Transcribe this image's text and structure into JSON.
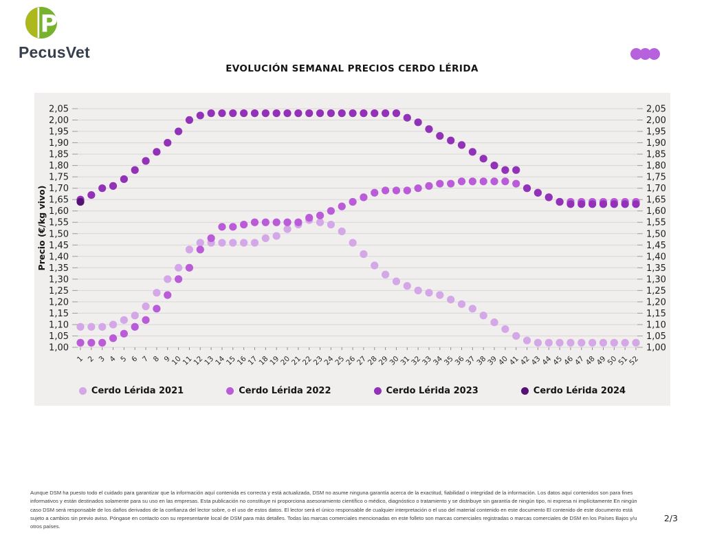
{
  "header": {
    "logo": {
      "monogram": "P",
      "wordmark": "PecusVet",
      "colors": {
        "left_half": "#adb81c",
        "right_half": "#77b22c",
        "text": "#36404d"
      }
    },
    "menu_dots_icon": "three-dots",
    "menu_dots_color": "#b761dc"
  },
  "title": "EVOLUCIÓN SEMANAL PRECIOS CERDO LÉRIDA",
  "chart_data": {
    "type": "scatter",
    "title": "EVOLUCIÓN SEMANAL PRECIOS CERDO LÉRIDA",
    "xlabel": "",
    "ylabel": "Precio (€/kg vivo)",
    "x": [
      1,
      2,
      3,
      4,
      5,
      6,
      7,
      8,
      9,
      10,
      11,
      12,
      13,
      14,
      15,
      16,
      17,
      18,
      19,
      20,
      21,
      22,
      23,
      24,
      25,
      26,
      27,
      28,
      29,
      30,
      31,
      32,
      33,
      34,
      35,
      36,
      37,
      38,
      39,
      40,
      41,
      42,
      43,
      44,
      45,
      46,
      47,
      48,
      49,
      50,
      51,
      52
    ],
    "ylim": [
      1.0,
      2.05
    ],
    "ytick_step": 0.05,
    "y_tick_labels": [
      "2,05",
      "2,00",
      "1,95",
      "1,90",
      "1,85",
      "1,80",
      "1,75",
      "1,70",
      "1,65",
      "1,60",
      "1,55",
      "1,50",
      "1,45",
      "1,40",
      "1,35",
      "1,30",
      "1,25",
      "1,20",
      "1,15",
      "1,10",
      "1,05",
      "1,00"
    ],
    "grid": true,
    "legend_position": "bottom",
    "background": "#f0efee",
    "series": [
      {
        "name": "Cerdo Lérida 2021",
        "color": "#d4a7e6",
        "values": [
          1.09,
          1.09,
          1.09,
          1.1,
          1.12,
          1.14,
          1.18,
          1.24,
          1.3,
          1.35,
          1.43,
          1.46,
          1.46,
          1.46,
          1.46,
          1.46,
          1.46,
          1.48,
          1.49,
          1.52,
          1.54,
          1.56,
          1.55,
          1.54,
          1.51,
          1.46,
          1.41,
          1.36,
          1.32,
          1.29,
          1.27,
          1.25,
          1.24,
          1.23,
          1.21,
          1.19,
          1.17,
          1.14,
          1.11,
          1.08,
          1.05,
          1.03,
          1.02,
          1.02,
          1.02,
          1.02,
          1.02,
          1.02,
          1.02,
          1.02,
          1.02,
          1.02
        ]
      },
      {
        "name": "Cerdo Lérida 2022",
        "color": "#ba5cd7",
        "values": [
          1.02,
          1.02,
          1.02,
          1.04,
          1.06,
          1.09,
          1.12,
          1.17,
          1.23,
          1.3,
          1.35,
          1.43,
          1.48,
          1.53,
          1.53,
          1.54,
          1.55,
          1.55,
          1.55,
          1.55,
          1.55,
          1.57,
          1.58,
          1.6,
          1.62,
          1.64,
          1.66,
          1.68,
          1.69,
          1.69,
          1.69,
          1.7,
          1.71,
          1.72,
          1.72,
          1.73,
          1.73,
          1.73,
          1.73,
          1.73,
          1.72,
          1.7,
          1.68,
          1.66,
          1.64,
          1.64,
          1.64,
          1.64,
          1.64,
          1.64,
          1.64,
          1.64
        ]
      },
      {
        "name": "Cerdo Lérida 2023",
        "color": "#9232b7",
        "values": [
          1.65,
          1.67,
          1.7,
          1.71,
          1.74,
          1.78,
          1.82,
          1.86,
          1.9,
          1.95,
          2.0,
          2.02,
          2.03,
          2.03,
          2.03,
          2.03,
          2.03,
          2.03,
          2.03,
          2.03,
          2.03,
          2.03,
          2.03,
          2.03,
          2.03,
          2.03,
          2.03,
          2.03,
          2.03,
          2.03,
          2.01,
          1.99,
          1.96,
          1.93,
          1.91,
          1.89,
          1.86,
          1.83,
          1.8,
          1.78,
          1.78,
          1.7,
          1.68,
          1.66,
          1.64,
          1.63,
          1.63,
          1.63,
          1.63,
          1.63,
          1.63,
          1.63
        ]
      },
      {
        "name": "Cerdo Lérida 2024",
        "color": "#551173",
        "values": [
          1.64,
          null,
          null,
          null,
          null,
          null,
          null,
          null,
          null,
          null,
          null,
          null,
          null,
          null,
          null,
          null,
          null,
          null,
          null,
          null,
          null,
          null,
          null,
          null,
          null,
          null,
          null,
          null,
          null,
          null,
          null,
          null,
          null,
          null,
          null,
          null,
          null,
          null,
          null,
          null,
          null,
          null,
          null,
          null,
          null,
          null,
          null,
          null,
          null,
          null,
          null,
          null
        ]
      }
    ]
  },
  "footer": {
    "disclaimer": "Aunque DSM ha puesto todo el cuidado para garantizar que la información aquí contenida es correcta y está actualizada, DSM no asume ninguna garantía acerca de la exactitud, fiabilidad o integridad de la información. Los datos aquí contenidos son para fines informativos y están destinados solamente para su uso en las empresas. Esta publicación no constituye ni proporciona asesoramiento científico o médico, diagnóstico o tratamiento y se distribuye sin garantía de ningún tipo, ni expresa ni implícitamente En ningún caso DSM será responsable de los daños derivados de la confianza del lector sobre, o el uso de estos datos. El lector será el único responsable de cualquier interpretación o el uso del material contenido en este documento El contenido de este documento está sujeto a cambios sin previo aviso. Póngase en contacto con su representante local de DSM para más detalles. Todas las marcas comerciales mencionadas en este folleto son marcas comerciales registradas o marcas comerciales de DSM en los Países Bajos y/u otros países.",
    "page_indicator": "2/3"
  }
}
